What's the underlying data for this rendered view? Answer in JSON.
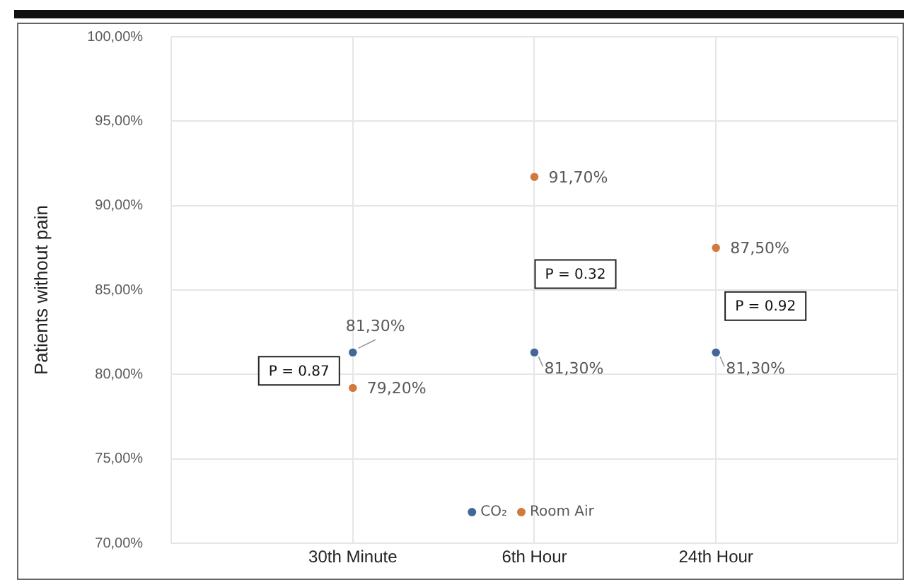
{
  "chart_data": {
    "type": "scatter",
    "ylabel": "Patients without pain",
    "categories": [
      "30th Minute",
      "6th Hour",
      "24th Hour"
    ],
    "series": [
      {
        "name": "CO₂",
        "color": "#44679a",
        "values": [
          81.3,
          81.3,
          81.3
        ],
        "value_labels": [
          "81,30%",
          "81,30%",
          "81,30%"
        ]
      },
      {
        "name": "Room Air",
        "color": "#d07a3e",
        "values": [
          79.2,
          91.7,
          87.5
        ],
        "value_labels": [
          "79,20%",
          "91,70%",
          "87,50%"
        ]
      }
    ],
    "ylim": [
      70,
      100
    ],
    "yticks": [
      {
        "value": 70,
        "label": "70,00%"
      },
      {
        "value": 75,
        "label": "75,00%"
      },
      {
        "value": 80,
        "label": "80,00%"
      },
      {
        "value": 85,
        "label": "85,00%"
      },
      {
        "value": 90,
        "label": "90,00%"
      },
      {
        "value": 95,
        "label": "95,00%"
      },
      {
        "value": 100,
        "label": "100,00%"
      }
    ],
    "grid": true,
    "legend": "bottom",
    "marker": "circle",
    "annotations": [
      "P = 0.87",
      "P = 0.32",
      "P = 0.92"
    ]
  }
}
